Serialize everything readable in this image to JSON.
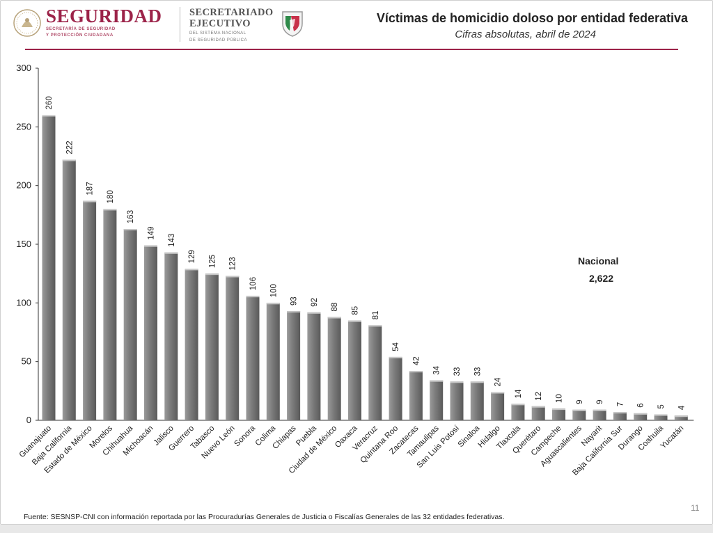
{
  "header": {
    "brand_title": "SEGURIDAD",
    "brand_sub_1": "SECRETARÍA DE SEGURIDAD",
    "brand_sub_2": "Y PROTECCIÓN CIUDADANA",
    "secre_title_1": "SECRETARIADO",
    "secre_title_2": "EJECUTIVO",
    "secre_sub_1": "DEL SISTEMA NACIONAL",
    "secre_sub_2": "DE SEGURIDAD PÚBLICA",
    "brand_color": "#9c2349"
  },
  "chart_data": {
    "type": "bar",
    "title": "Víctimas de homicidio doloso por entidad federativa",
    "subtitle": "Cifras absolutas, abril de 2024",
    "categories": [
      "Guanajuato",
      "Baja California",
      "Estado de México",
      "Morelos",
      "Chihuahua",
      "Michoacán",
      "Jalisco",
      "Guerrero",
      "Tabasco",
      "Nuevo León",
      "Sonora",
      "Colima",
      "Chiapas",
      "Puebla",
      "Ciudad de México",
      "Oaxaca",
      "Veracruz",
      "Quintana Roo",
      "Zacatecas",
      "Tamaulipas",
      "San Luis Potosí",
      "Sinaloa",
      "Hidalgo",
      "Tlaxcala",
      "Querétaro",
      "Campeche",
      "Aguascalientes",
      "Nayarit",
      "Baja California Sur",
      "Durango",
      "Coahuila",
      "Yucatán"
    ],
    "values": [
      260,
      222,
      187,
      180,
      163,
      149,
      143,
      129,
      125,
      123,
      106,
      100,
      93,
      92,
      88,
      85,
      81,
      54,
      42,
      34,
      33,
      33,
      24,
      14,
      12,
      10,
      9,
      9,
      7,
      6,
      5,
      4
    ],
    "ylim": [
      0,
      300
    ],
    "yticks": [
      "0",
      "50",
      "100",
      "150",
      "200",
      "250",
      "300"
    ],
    "bar_color": "#7a7a7a",
    "grid": false,
    "xlabel": "",
    "ylabel": ""
  },
  "annotation": {
    "label": "Nacional",
    "value": "2,622"
  },
  "footer": {
    "source": "Fuente: SESNSP-CNI con información reportada por las Procuradurías Generales de Justicia o Fiscalías Generales de las 32 entidades federativas.",
    "page_number": "11"
  }
}
